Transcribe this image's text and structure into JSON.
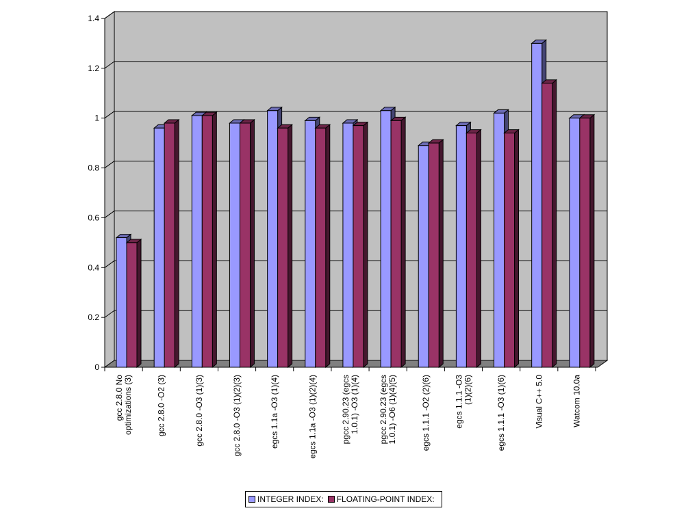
{
  "chart_data": {
    "type": "bar",
    "categories": [
      "gcc 2.8.0 No optimizations (3)",
      "gcc 2.8.0 -O2 (3)",
      "gcc 2.8.0 -O3 (1)(3)",
      "gcc 2.8.0 -O3 (1)(2)(3)",
      "egcs 1.1a -O3 (1)(4)",
      "egcs 1.1a -O3 (1)(2)(4)",
      "pgcc 2.90.23 (egcs 1.0.1) -O3 (1)(4)",
      "pgcc 2.90.23 (egcs 1.0.1) -O6 (1)(4)(5)",
      "egcs 1.1.1 -O2 (2)(6)",
      "egcs 1.1.1 -O3 (1)(2)(6)",
      "egcs 1.1.1 -O3 (1)(6)",
      "Visual C++ 5.0",
      "Watcom 10.0a"
    ],
    "series": [
      {
        "name": "INTEGER INDEX:",
        "color": "#9999ff",
        "values": [
          0.52,
          0.96,
          1.01,
          0.98,
          1.03,
          0.99,
          0.98,
          1.03,
          0.89,
          0.97,
          1.02,
          1.3,
          1.0
        ]
      },
      {
        "name": "FLOATING-POINT INDEX:",
        "color": "#993366",
        "values": [
          0.5,
          0.98,
          1.01,
          0.98,
          0.96,
          0.96,
          0.97,
          0.99,
          0.9,
          0.94,
          0.94,
          1.14,
          1.0
        ]
      }
    ],
    "ylim": [
      0,
      1.4
    ],
    "yticks": [
      "0",
      "0.2",
      "0.4",
      "0.6",
      "0.8",
      "1",
      "1.2",
      "1.4"
    ],
    "grid": true,
    "legend_position": "bottom",
    "plot_background": "#c0c0c0"
  }
}
